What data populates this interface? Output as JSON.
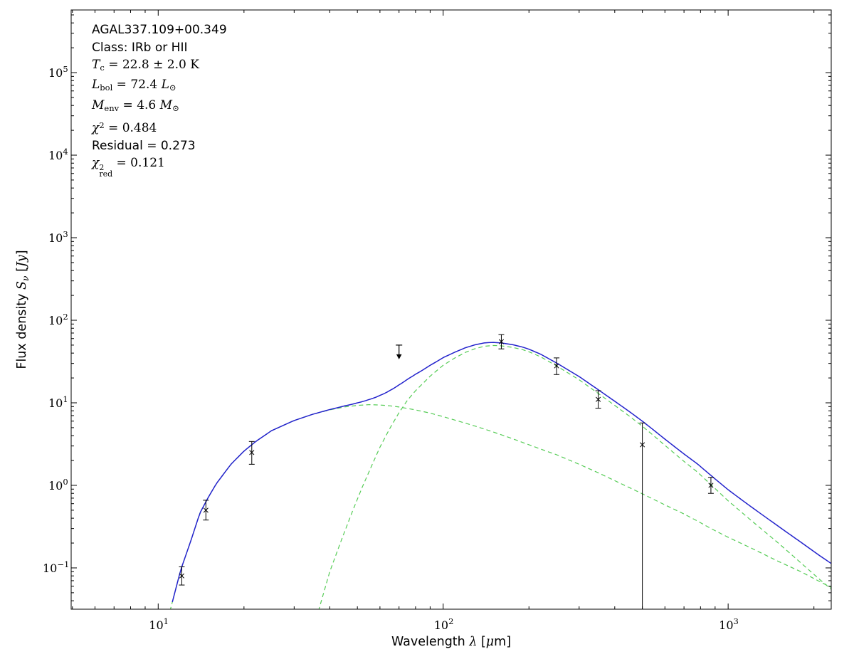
{
  "page": {
    "background": "#ffffff"
  },
  "chart_data": {
    "type": "line",
    "title": "",
    "xscale": "log",
    "yscale": "log",
    "xlim": [
      4.95,
      2300
    ],
    "ylim": [
      0.0316,
      574000
    ],
    "xlabel_segments": [
      {
        "t": "Wavelength ",
        "s": "sans"
      },
      {
        "t": "λ",
        "s": "it"
      },
      {
        "t": " [",
        "s": "sans"
      },
      {
        "t": "μ",
        "s": "it"
      },
      {
        "t": "m]",
        "s": "sans"
      }
    ],
    "ylabel_segments": [
      {
        "t": "Flux density ",
        "s": "sans"
      },
      {
        "t": "S",
        "s": "it"
      },
      {
        "t": "ν",
        "s": "it",
        "v": "sub"
      },
      {
        "t": " [",
        "s": "sans"
      },
      {
        "t": "Jy",
        "s": "it"
      },
      {
        "t": "]",
        "s": "sans"
      }
    ],
    "x_ticks": [
      {
        "value": 10,
        "exp": "1"
      },
      {
        "value": 100,
        "exp": "2"
      },
      {
        "value": 1000,
        "exp": "3"
      }
    ],
    "y_ticks": [
      {
        "value": 100000,
        "exp": "5"
      },
      {
        "value": 10000,
        "exp": "4"
      },
      {
        "value": 1000,
        "exp": "3"
      },
      {
        "value": 100,
        "exp": "2"
      },
      {
        "value": 10,
        "exp": "1"
      },
      {
        "value": 1,
        "exp": "0"
      },
      {
        "value": 0.1,
        "exp": "−1"
      }
    ],
    "colors": {
      "total": "#2222cc",
      "component": "#55cc55",
      "data": "#000000",
      "frame": "#000000",
      "background": "#ffffff"
    },
    "annotation_lines": [
      [
        {
          "t": "AGAL337.109+00.349",
          "s": "sans"
        }
      ],
      [
        {
          "t": "Class: IRb or HII",
          "s": "sans"
        }
      ],
      [
        {
          "t": "T",
          "s": "it"
        },
        {
          "t": "c",
          "s": "rm",
          "v": "sub"
        },
        {
          "t": " = 22.8 ± 2.0 K",
          "s": "rm"
        }
      ],
      [
        {
          "t": "L",
          "s": "it"
        },
        {
          "t": "bol",
          "s": "rm",
          "v": "sub"
        },
        {
          "t": " = 72.4 ",
          "s": "rm"
        },
        {
          "t": "L",
          "s": "it"
        },
        {
          "t": "⊙",
          "s": "rm",
          "v": "sub"
        }
      ],
      [
        {
          "t": "M",
          "s": "it"
        },
        {
          "t": "env",
          "s": "rm",
          "v": "sub"
        },
        {
          "t": " = 4.6 ",
          "s": "rm"
        },
        {
          "t": "M",
          "s": "it"
        },
        {
          "t": "⊙",
          "s": "rm",
          "v": "sub"
        }
      ],
      [
        {
          "t": "χ",
          "s": "it"
        },
        {
          "t": "2",
          "s": "rm",
          "v": "sup"
        },
        {
          "t": " = 0.484",
          "s": "rm"
        }
      ],
      [
        {
          "t": "Residual = 0.273",
          "s": "sans"
        }
      ],
      [
        {
          "t": "χ",
          "s": "it"
        },
        {
          "sup": "2",
          "sub": "red",
          "s": "rm",
          "v": "stack"
        },
        {
          "t": " = 0.121",
          "s": "rm"
        }
      ]
    ],
    "series": [
      {
        "name": "total model fit",
        "style": "solid",
        "color": "total",
        "role": "total",
        "note": "solid blue curve = sum of the two dashed greybody components"
      },
      {
        "name": "warm component",
        "style": "dashed",
        "color": "component",
        "role": "component",
        "points": [
          [
            11,
            0.03
          ],
          [
            12,
            0.095
          ],
          [
            13,
            0.21
          ],
          [
            14,
            0.46
          ],
          [
            15,
            0.72
          ],
          [
            16,
            1.05
          ],
          [
            18,
            1.8
          ],
          [
            20,
            2.6
          ],
          [
            22,
            3.4
          ],
          [
            25,
            4.6
          ],
          [
            30,
            6.1
          ],
          [
            35,
            7.3
          ],
          [
            40,
            8.2
          ],
          [
            45,
            8.9
          ],
          [
            50,
            9.3
          ],
          [
            55,
            9.5
          ],
          [
            60,
            9.4
          ],
          [
            65,
            9.2
          ],
          [
            70,
            8.9
          ],
          [
            80,
            8.2
          ],
          [
            90,
            7.5
          ],
          [
            100,
            6.8
          ],
          [
            115,
            5.9
          ],
          [
            130,
            5.2
          ],
          [
            145,
            4.6
          ],
          [
            160,
            4.1
          ],
          [
            180,
            3.55
          ],
          [
            200,
            3.1
          ],
          [
            230,
            2.6
          ],
          [
            250,
            2.35
          ],
          [
            300,
            1.8
          ],
          [
            350,
            1.42
          ],
          [
            400,
            1.14
          ],
          [
            450,
            0.94
          ],
          [
            500,
            0.79
          ],
          [
            600,
            0.58
          ],
          [
            700,
            0.45
          ],
          [
            780,
            0.37
          ],
          [
            870,
            0.3
          ],
          [
            1000,
            0.235
          ],
          [
            1200,
            0.175
          ],
          [
            1500,
            0.12
          ],
          [
            1800,
            0.09
          ],
          [
            2100,
            0.068
          ],
          [
            2300,
            0.058
          ]
        ]
      },
      {
        "name": "cold component (Tc = 22.8 K)",
        "style": "dashed",
        "color": "component",
        "role": "component",
        "points": [
          [
            36.5,
            0.03
          ],
          [
            40,
            0.09
          ],
          [
            44,
            0.22
          ],
          [
            48,
            0.48
          ],
          [
            52,
            0.95
          ],
          [
            56,
            1.7
          ],
          [
            60,
            2.9
          ],
          [
            65,
            4.9
          ],
          [
            70,
            7.6
          ],
          [
            75,
            10.8
          ],
          [
            80,
            14.0
          ],
          [
            90,
            21.0
          ],
          [
            100,
            28.5
          ],
          [
            110,
            35
          ],
          [
            120,
            41
          ],
          [
            130,
            45.5
          ],
          [
            140,
            48.5
          ],
          [
            150,
            49.5
          ],
          [
            160,
            49
          ],
          [
            175,
            47
          ],
          [
            190,
            44
          ],
          [
            200,
            41.5
          ],
          [
            220,
            36
          ],
          [
            250,
            28
          ],
          [
            280,
            22
          ],
          [
            300,
            19
          ],
          [
            350,
            13
          ],
          [
            400,
            9.3
          ],
          [
            450,
            6.9
          ],
          [
            500,
            5.2
          ],
          [
            550,
            3.95
          ],
          [
            600,
            3.05
          ],
          [
            700,
            1.95
          ],
          [
            780,
            1.45
          ],
          [
            870,
            1.02
          ],
          [
            1000,
            0.65
          ],
          [
            1200,
            0.38
          ],
          [
            1500,
            0.2
          ],
          [
            1800,
            0.115
          ],
          [
            2100,
            0.072
          ],
          [
            2300,
            0.055
          ]
        ]
      }
    ],
    "data_points": [
      {
        "x": 12.1,
        "y": 0.08,
        "lo": 0.062,
        "hi": 0.103
      },
      {
        "x": 14.7,
        "y": 0.5,
        "lo": 0.38,
        "hi": 0.66
      },
      {
        "x": 21.3,
        "y": 2.5,
        "lo": 1.8,
        "hi": 3.4
      },
      {
        "x": 160,
        "y": 55,
        "lo": 45,
        "hi": 67
      },
      {
        "x": 250,
        "y": 28,
        "lo": 22,
        "hi": 35
      },
      {
        "x": 350,
        "y": 11,
        "lo": 8.6,
        "hi": 14
      },
      {
        "x": 500,
        "y": 3.1,
        "lo": 0.03,
        "hi": 5.7
      },
      {
        "x": 870,
        "y": 1.0,
        "lo": 0.8,
        "hi": 1.25
      }
    ],
    "upper_limits": [
      {
        "x": 70,
        "y": 50
      }
    ]
  }
}
